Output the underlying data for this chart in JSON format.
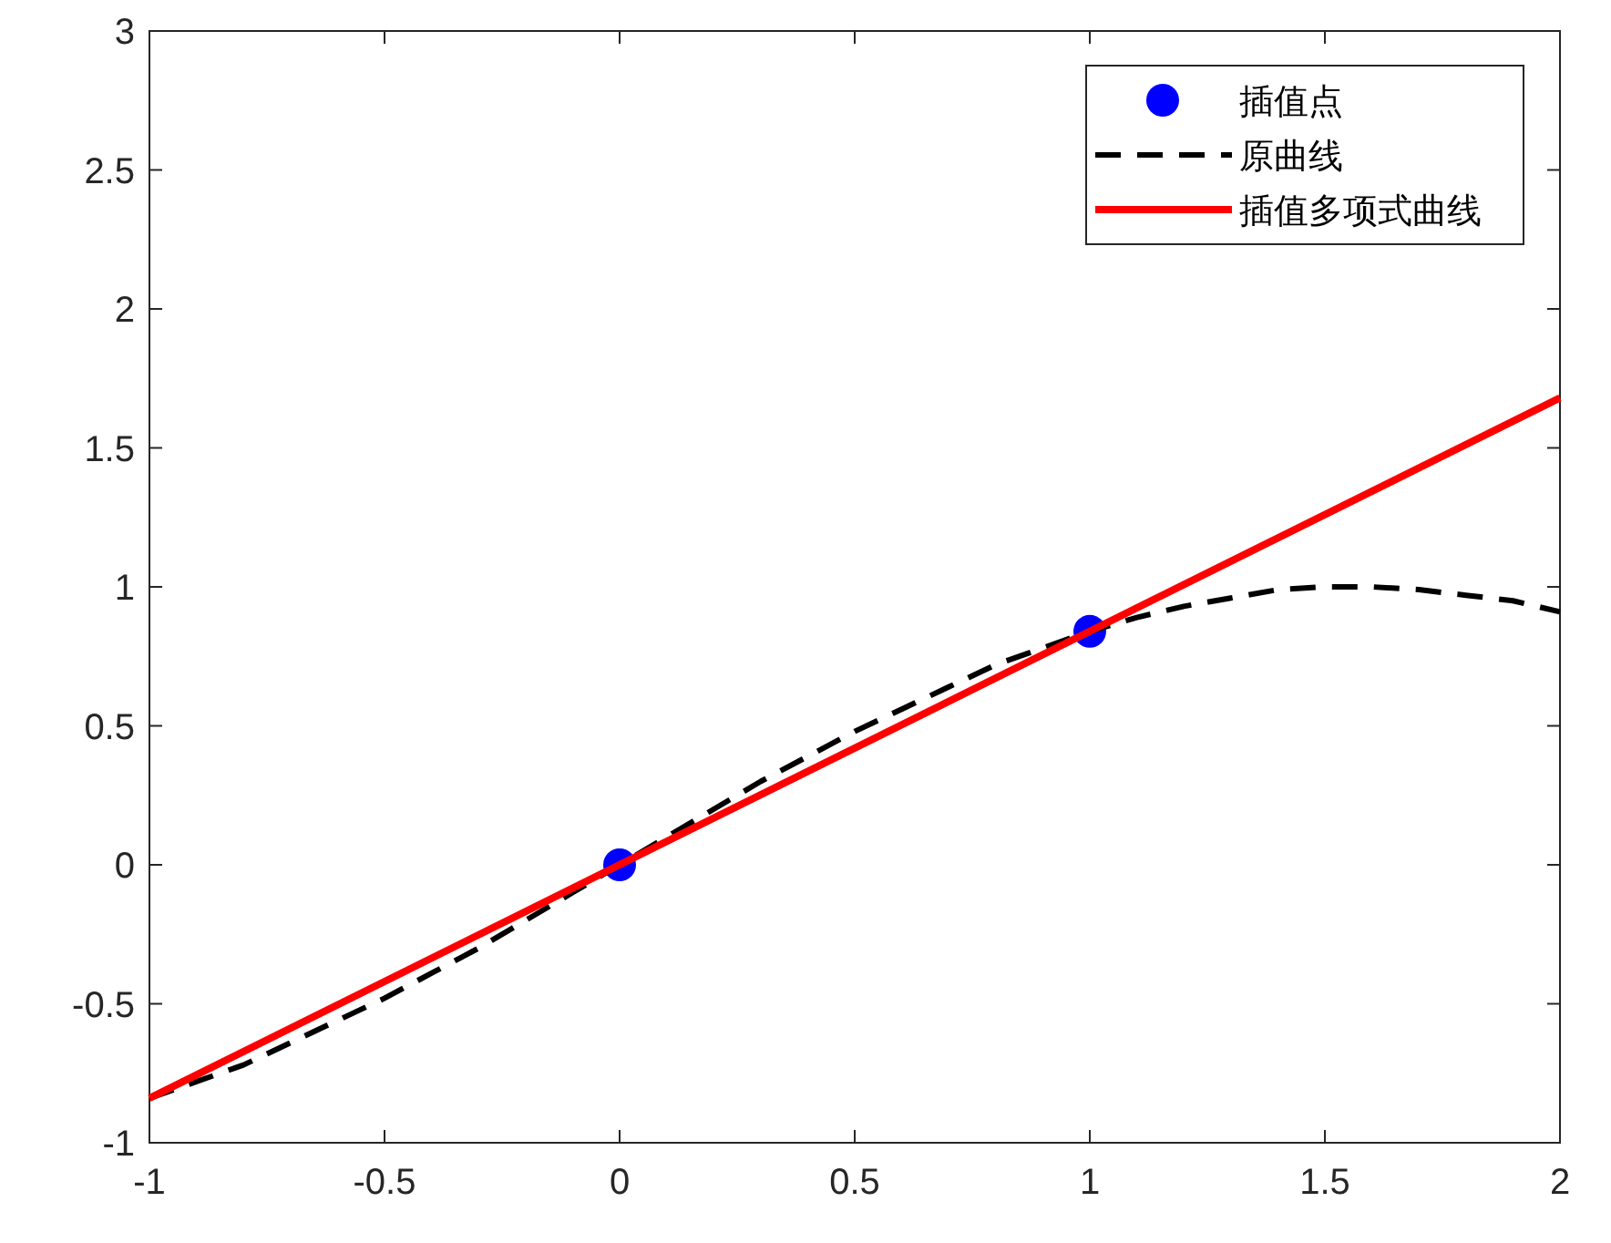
{
  "chart_data": {
    "type": "line",
    "xlim": [
      -1,
      2
    ],
    "ylim": [
      -1,
      3
    ],
    "xticks": [
      -1,
      -0.5,
      0,
      0.5,
      1,
      1.5,
      2
    ],
    "yticks": [
      -1,
      -0.5,
      0,
      0.5,
      1,
      1.5,
      2,
      2.5,
      3
    ],
    "grid": false,
    "legend": "top right",
    "series": [
      {
        "name": "插值点",
        "type": "scatter",
        "marker": "circle",
        "color": "#0000ff",
        "x": [
          0,
          1
        ],
        "values": [
          0,
          0.84
        ]
      },
      {
        "name": "原曲线",
        "line_style": "dashed",
        "color": "#000000",
        "x": [
          -1,
          -0.9,
          -0.8,
          -0.7,
          -0.6,
          -0.5,
          -0.4,
          -0.3,
          -0.2,
          -0.1,
          0,
          0.1,
          0.2,
          0.3,
          0.4,
          0.5,
          0.6,
          0.7,
          0.8,
          0.9,
          1,
          1.1,
          1.2,
          1.3,
          1.4,
          1.5,
          1.6,
          1.7,
          1.8,
          1.9,
          2
        ],
        "values": [
          -0.84,
          -0.78,
          -0.72,
          -0.64,
          -0.56,
          -0.48,
          -0.39,
          -0.3,
          -0.2,
          -0.1,
          0,
          0.1,
          0.2,
          0.3,
          0.39,
          0.48,
          0.56,
          0.64,
          0.72,
          0.78,
          0.84,
          0.89,
          0.93,
          0.96,
          0.99,
          1.0,
          1.0,
          0.99,
          0.97,
          0.95,
          0.91
        ]
      },
      {
        "name": "插值多项式曲线",
        "line_style": "solid",
        "color": "#ff0000",
        "x": [
          -1,
          2
        ],
        "values": [
          -0.84,
          1.68
        ]
      }
    ]
  }
}
